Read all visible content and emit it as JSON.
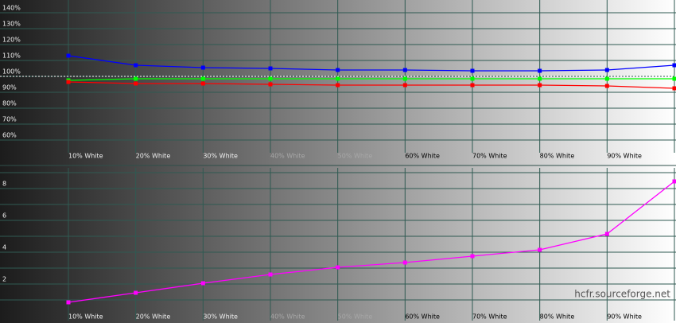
{
  "chart_data": [
    {
      "type": "line",
      "categories": [
        "10% White",
        "20% White",
        "30% White",
        "40% White",
        "50% White",
        "60% White",
        "70% White",
        "80% White",
        "90% White",
        null
      ],
      "series": [
        {
          "color": "#0000ff",
          "values": [
            113,
            107,
            105.5,
            105,
            104,
            104,
            103.5,
            103.5,
            104,
            107
          ]
        },
        {
          "color": "#00ff00",
          "values": [
            97.5,
            98.5,
            98.5,
            98.5,
            98.5,
            98.5,
            98.5,
            98.5,
            98.5,
            98.5
          ]
        },
        {
          "color": "#ff0000",
          "values": [
            96.5,
            95.5,
            95.5,
            95,
            94.5,
            94.5,
            94.5,
            94.5,
            94,
            92.5
          ]
        }
      ],
      "ylim": [
        55,
        145
      ],
      "yticks": [
        {
          "value": 60,
          "label": "60%"
        },
        {
          "value": 70,
          "label": "70%"
        },
        {
          "value": 80,
          "label": "80%"
        },
        {
          "value": 90,
          "label": "90%"
        },
        {
          "value": 100,
          "label": "100%"
        },
        {
          "value": 110,
          "label": "110%"
        },
        {
          "value": 120,
          "label": "120%"
        },
        {
          "value": 130,
          "label": "130%"
        },
        {
          "value": 140,
          "label": "140%"
        }
      ],
      "reference_line": 100,
      "grid": true
    },
    {
      "type": "line",
      "categories": [
        "10% White",
        "20% White",
        "30% White",
        "40% White",
        "50% White",
        "60% White",
        "70% White",
        "80% White",
        "90% White",
        null
      ],
      "series": [
        {
          "color": "#ff00ff",
          "values": [
            0.85,
            1.45,
            2.05,
            2.6,
            3.05,
            3.35,
            3.75,
            4.15,
            5.15,
            8.45
          ]
        }
      ],
      "ylim": [
        0,
        9
      ],
      "yticks": [
        2,
        4,
        6,
        8
      ],
      "minor_yticks": [
        1,
        3,
        5,
        7,
        9
      ],
      "annotation": "hcfr.sourceforge.net",
      "grid": true
    }
  ]
}
